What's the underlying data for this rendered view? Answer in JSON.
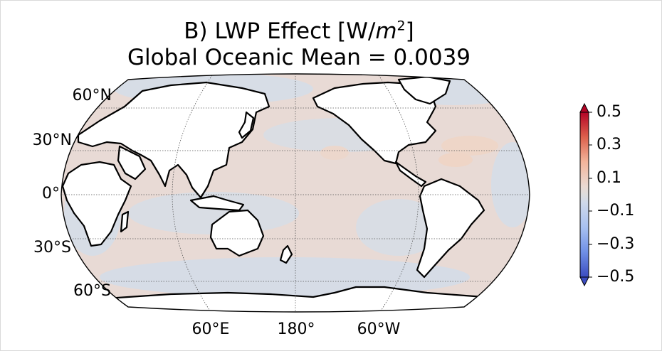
{
  "title": {
    "prefix": "B) LWP Effect [W/",
    "unit_var": "m",
    "unit_exp": "2",
    "suffix": "]",
    "line2": "Global Oceanic Mean = 0.0039"
  },
  "lat_labels": [
    "60°N",
    "30°N",
    "0°",
    "30°S",
    "60°S"
  ],
  "lon_labels": [
    "60°E",
    "180°",
    "60°W"
  ],
  "colorbar": {
    "ticks": [
      "0.5",
      "0.3",
      "0.1",
      "−0.1",
      "−0.3",
      "−0.5"
    ],
    "min": -0.5,
    "max": 0.5,
    "colormap": "coolwarm",
    "extend": "both",
    "top_color": "#b40426",
    "bottom_color": "#3b4cc0"
  },
  "map": {
    "projection": "Robinson",
    "central_longitude": 180,
    "ocean_fill_positive": "#ead9d4",
    "ocean_fill_negative": "#d6dce6",
    "land_fill": "#ffffff",
    "coastline_color": "#000000",
    "gridlines": "dotted"
  }
}
